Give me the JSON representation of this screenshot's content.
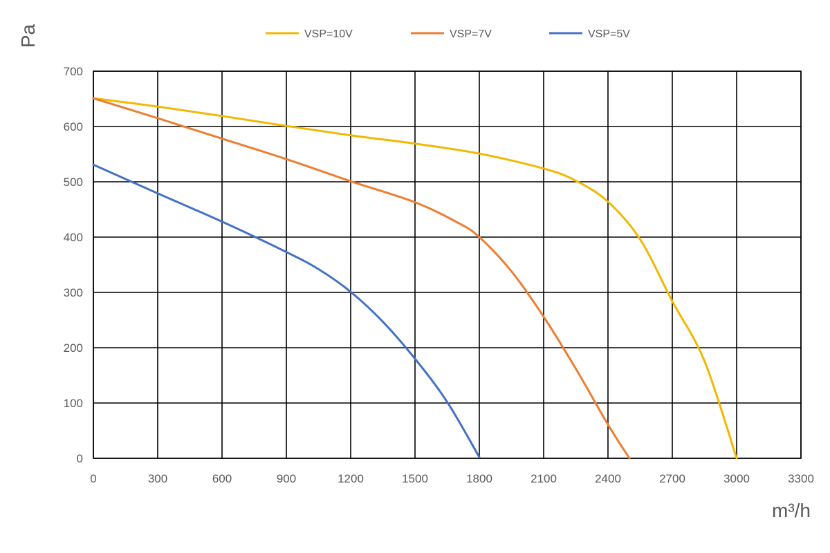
{
  "chart_data": {
    "type": "line",
    "xlabel": "m³/h",
    "ylabel": "Pa",
    "xlim": [
      0,
      3300
    ],
    "ylim": [
      0,
      700
    ],
    "x_ticks": [
      "0",
      "300",
      "600",
      "900",
      "1200",
      "1500",
      "1800",
      "2100",
      "2400",
      "2700",
      "3000",
      "3300"
    ],
    "y_ticks": [
      "0",
      "100",
      "200",
      "300",
      "400",
      "500",
      "600",
      "700"
    ],
    "grid": true,
    "legend_position": "top",
    "series": [
      {
        "name": "VSP=10V",
        "color": "#f2b800",
        "x": [
          0,
          300,
          600,
          900,
          1200,
          1500,
          1800,
          2100,
          2250,
          2400,
          2550,
          2700,
          2850,
          3000
        ],
        "y": [
          651,
          636,
          619,
          601,
          584,
          569,
          551,
          524,
          502,
          464,
          396,
          284,
          176,
          0
        ]
      },
      {
        "name": "VSP=7V",
        "color": "#ed7d31",
        "x": [
          0,
          300,
          600,
          900,
          1200,
          1500,
          1700,
          1800,
          1950,
          2100,
          2250,
          2400,
          2500
        ],
        "y": [
          651,
          615,
          578,
          541,
          501,
          463,
          426,
          400,
          338,
          256,
          162,
          61,
          0
        ]
      },
      {
        "name": "VSP=5V",
        "color": "#4472c4",
        "x": [
          0,
          300,
          600,
          900,
          1050,
          1200,
          1350,
          1500,
          1650,
          1800
        ],
        "y": [
          531,
          479,
          428,
          373,
          342,
          301,
          247,
          180,
          102,
          2
        ]
      }
    ]
  }
}
